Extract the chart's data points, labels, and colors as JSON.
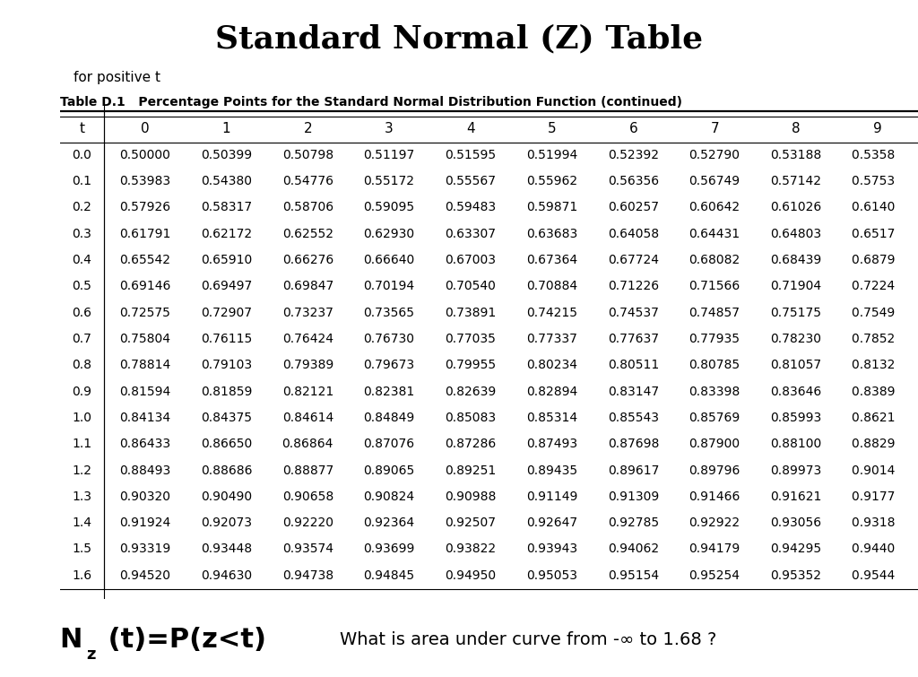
{
  "title": "Standard Normal (Z) Table",
  "subtitle": "for positive t",
  "table_label": "Table D.1   Percentage Points for the Standard Normal Distribution Function (continued)",
  "col_headers": [
    "t",
    "0",
    "1",
    "2",
    "3",
    "4",
    "5",
    "6",
    "7",
    "8",
    "9"
  ],
  "rows": [
    [
      "0.0",
      "0.50000",
      "0.50399",
      "0.50798",
      "0.51197",
      "0.51595",
      "0.51994",
      "0.52392",
      "0.52790",
      "0.53188",
      "0.5358 "
    ],
    [
      "0.1",
      "0.53983",
      "0.54380",
      "0.54776",
      "0.55172",
      "0.55567",
      "0.55962",
      "0.56356",
      "0.56749",
      "0.57142",
      "0.5753 "
    ],
    [
      "0.2",
      "0.57926",
      "0.58317",
      "0.58706",
      "0.59095",
      "0.59483",
      "0.59871",
      "0.60257",
      "0.60642",
      "0.61026",
      "0.6140 "
    ],
    [
      "0.3",
      "0.61791",
      "0.62172",
      "0.62552",
      "0.62930",
      "0.63307",
      "0.63683",
      "0.64058",
      "0.64431",
      "0.64803",
      "0.6517 "
    ],
    [
      "0.4",
      "0.65542",
      "0.65910",
      "0.66276",
      "0.66640",
      "0.67003",
      "0.67364",
      "0.67724",
      "0.68082",
      "0.68439",
      "0.6879 "
    ],
    [
      "0.5",
      "0.69146",
      "0.69497",
      "0.69847",
      "0.70194",
      "0.70540",
      "0.70884",
      "0.71226",
      "0.71566",
      "0.71904",
      "0.7224 "
    ],
    [
      "0.6",
      "0.72575",
      "0.72907",
      "0.73237",
      "0.73565",
      "0.73891",
      "0.74215",
      "0.74537",
      "0.74857",
      "0.75175",
      "0.7549 "
    ],
    [
      "0.7",
      "0.75804",
      "0.76115",
      "0.76424",
      "0.76730",
      "0.77035",
      "0.77337",
      "0.77637",
      "0.77935",
      "0.78230",
      "0.7852 "
    ],
    [
      "0.8",
      "0.78814",
      "0.79103",
      "0.79389",
      "0.79673",
      "0.79955",
      "0.80234",
      "0.80511",
      "0.80785",
      "0.81057",
      "0.8132 "
    ],
    [
      "0.9",
      "0.81594",
      "0.81859",
      "0.82121",
      "0.82381",
      "0.82639",
      "0.82894",
      "0.83147",
      "0.83398",
      "0.83646",
      "0.8389 "
    ],
    [
      "1.0",
      "0.84134",
      "0.84375",
      "0.84614",
      "0.84849",
      "0.85083",
      "0.85314",
      "0.85543",
      "0.85769",
      "0.85993",
      "0.8621 "
    ],
    [
      "1.1",
      "0.86433",
      "0.86650",
      "0.86864",
      "0.87076",
      "0.87286",
      "0.87493",
      "0.87698",
      "0.87900",
      "0.88100",
      "0.8829 "
    ],
    [
      "1.2",
      "0.88493",
      "0.88686",
      "0.88877",
      "0.89065",
      "0.89251",
      "0.89435",
      "0.89617",
      "0.89796",
      "0.89973",
      "0.9014 "
    ],
    [
      "1.3",
      "0.90320",
      "0.90490",
      "0.90658",
      "0.90824",
      "0.90988",
      "0.91149",
      "0.91309",
      "0.91466",
      "0.91621",
      "0.9177 "
    ],
    [
      "1.4",
      "0.91924",
      "0.92073",
      "0.92220",
      "0.92364",
      "0.92507",
      "0.92647",
      "0.92785",
      "0.92922",
      "0.93056",
      "0.9318 "
    ],
    [
      "1.5",
      "0.93319",
      "0.93448",
      "0.93574",
      "0.93699",
      "0.93822",
      "0.93943",
      "0.94062",
      "0.94179",
      "0.94295",
      "0.9440 "
    ],
    [
      "1.6",
      "0.94520",
      "0.94630",
      "0.94738",
      "0.94845",
      "0.94950",
      "0.95053",
      "0.95154",
      "0.95254",
      "0.95352",
      "0.9544 "
    ]
  ],
  "footer_question": "What is area under curve from -∞ to 1.68 ?",
  "bg_color": "#ffffff",
  "title_fontsize": 26,
  "subtitle_fontsize": 11,
  "table_label_fontsize": 10,
  "header_fontsize": 11,
  "data_fontsize": 10,
  "footer_nz_fontsize": 22,
  "footer_q_fontsize": 14
}
